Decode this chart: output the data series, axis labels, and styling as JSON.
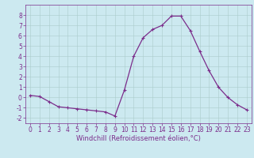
{
  "x": [
    0,
    1,
    2,
    3,
    4,
    5,
    6,
    7,
    8,
    9,
    10,
    11,
    12,
    13,
    14,
    15,
    16,
    17,
    18,
    19,
    20,
    21,
    22,
    23
  ],
  "y": [
    0.2,
    0.1,
    -0.4,
    -0.9,
    -1.0,
    -1.1,
    -1.2,
    -1.3,
    -1.4,
    -1.8,
    0.7,
    4.0,
    5.8,
    6.6,
    7.0,
    7.9,
    7.9,
    6.5,
    4.5,
    2.6,
    1.0,
    0.0,
    -0.7,
    -1.2
  ],
  "line_color": "#7b2d8b",
  "marker": "+",
  "marker_size": 3.5,
  "linewidth": 0.9,
  "xlabel": "Windchill (Refroidissement éolien,°C)",
  "ylim": [
    -2.5,
    9.0
  ],
  "xlim": [
    -0.5,
    23.5
  ],
  "bg_color": "#cce9f0",
  "grid_color": "#aacccc",
  "yticks": [
    -2,
    -1,
    0,
    1,
    2,
    3,
    4,
    5,
    6,
    7,
    8
  ],
  "xticks": [
    0,
    1,
    2,
    3,
    4,
    5,
    6,
    7,
    8,
    9,
    10,
    11,
    12,
    13,
    14,
    15,
    16,
    17,
    18,
    19,
    20,
    21,
    22,
    23
  ],
  "tick_color": "#7b2d8b",
  "xlabel_fontsize": 6.0,
  "tick_fontsize": 5.5,
  "fig_width": 3.2,
  "fig_height": 2.0,
  "dpi": 100
}
